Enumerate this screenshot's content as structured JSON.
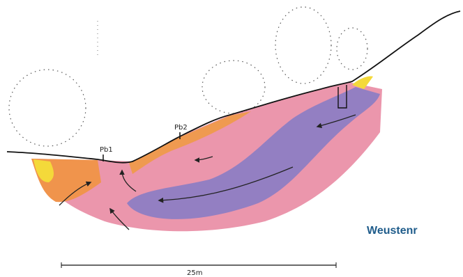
{
  "profiles": [
    "Pb1",
    "Pb2"
  ],
  "scale": "25m",
  "caption": "Weustenr"
}
